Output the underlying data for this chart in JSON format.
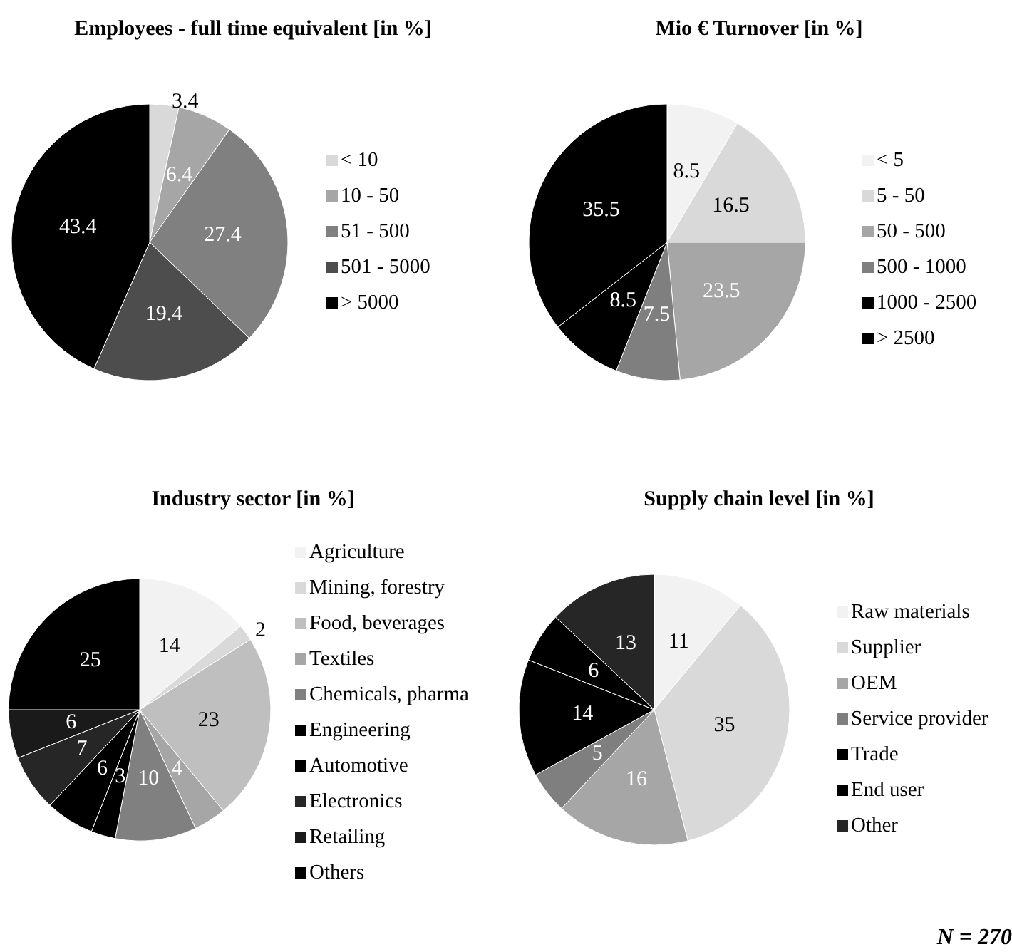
{
  "chart_data": [
    {
      "type": "pie",
      "title": "Employees - full time equivalent [in %]",
      "categories": [
        "< 10",
        "10 - 50",
        "51 - 500",
        "501 - 5000",
        "> 5000"
      ],
      "values": [
        3.4,
        6.4,
        27.4,
        19.4,
        43.4
      ],
      "colors": [
        "#d9d9d9",
        "#a6a6a6",
        "#808080",
        "#4d4d4d",
        "#000000"
      ],
      "data_labels": true,
      "legend": "right"
    },
    {
      "type": "pie",
      "title": "Mio € Turnover [in %]",
      "categories": [
        "< 5",
        "5 - 50",
        "50 - 500",
        "500 - 1000",
        "1000 - 2500",
        "> 2500"
      ],
      "values": [
        8.5,
        16.5,
        23.5,
        7.5,
        8.5,
        35.5
      ],
      "colors": [
        "#f2f2f2",
        "#d9d9d9",
        "#a6a6a6",
        "#7f7f7f",
        "#000000",
        "#000000"
      ],
      "data_labels": true,
      "legend": "right"
    },
    {
      "type": "pie",
      "title": "Industry sector [in %]",
      "categories": [
        "Agriculture",
        "Mining, forestry",
        "Food, beverages",
        "Textiles",
        "Chemicals, pharma",
        "Engineering",
        "Automotive",
        "Electronics",
        "Retailing",
        "Others"
      ],
      "values": [
        14,
        2,
        23,
        4,
        10,
        3,
        6,
        7,
        6,
        25
      ],
      "colors": [
        "#f2f2f2",
        "#d9d9d9",
        "#bfbfbf",
        "#a6a6a6",
        "#808080",
        "#000000",
        "#000000",
        "#262626",
        "#1a1a1a",
        "#000000"
      ],
      "data_labels": true,
      "legend": "right"
    },
    {
      "type": "pie",
      "title": "Supply chain level [in %]",
      "categories": [
        "Raw materials",
        "Supplier",
        "OEM",
        "Service provider",
        "Trade",
        "End user",
        "Other"
      ],
      "values": [
        11,
        35,
        16,
        5,
        14,
        6,
        13
      ],
      "colors": [
        "#f2f2f2",
        "#d9d9d9",
        "#a6a6a6",
        "#7f7f7f",
        "#000000",
        "#000000",
        "#262626"
      ],
      "data_labels": true,
      "legend": "right",
      "annotations": [
        "N = 270"
      ]
    }
  ]
}
